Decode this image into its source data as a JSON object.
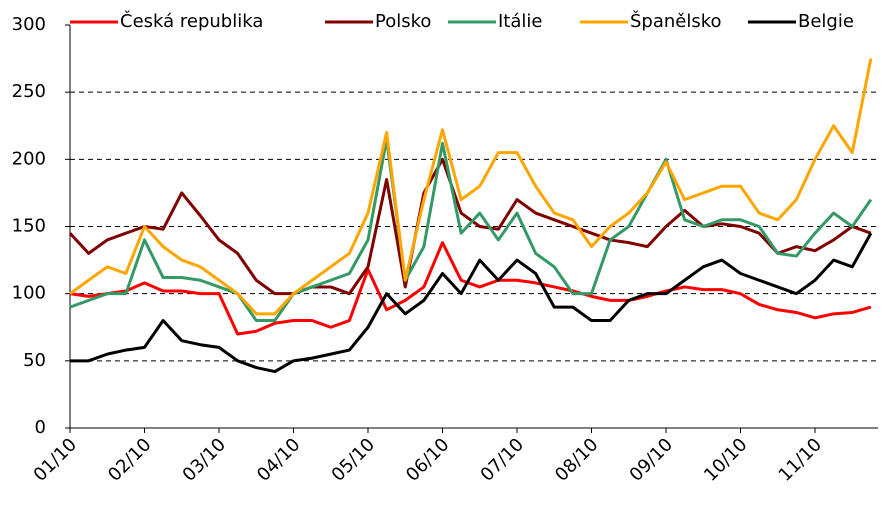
{
  "chart_data": {
    "type": "line",
    "categories": [
      "01/10",
      null,
      null,
      null,
      "02/10",
      null,
      null,
      null,
      "03/10",
      null,
      null,
      null,
      "04/10",
      null,
      null,
      null,
      "05/10",
      null,
      null,
      null,
      "06/10",
      null,
      null,
      null,
      "07/10",
      null,
      null,
      null,
      "08/10",
      null,
      null,
      null,
      "09/10",
      null,
      null,
      null,
      "10/10",
      null,
      null,
      null,
      "11/10",
      null,
      null,
      null
    ],
    "series": [
      {
        "name": "Česká republika",
        "color": "#ff0000",
        "values": [
          100,
          98,
          100,
          102,
          108,
          102,
          102,
          100,
          100,
          70,
          72,
          78,
          80,
          80,
          75,
          80,
          118,
          88,
          95,
          105,
          138,
          110,
          105,
          110,
          110,
          108,
          105,
          102,
          98,
          95,
          95,
          98,
          102,
          105,
          103,
          103,
          100,
          92,
          88,
          86,
          82,
          85,
          86,
          90
        ]
      },
      {
        "name": "Polsko",
        "color": "#800000",
        "values": [
          145,
          130,
          140,
          145,
          150,
          148,
          175,
          158,
          140,
          130,
          110,
          100,
          100,
          105,
          105,
          100,
          120,
          185,
          105,
          175,
          200,
          160,
          150,
          148,
          170,
          160,
          155,
          150,
          145,
          140,
          138,
          135,
          150,
          162,
          150,
          152,
          150,
          145,
          130,
          135,
          132,
          140,
          150,
          145
        ]
      },
      {
        "name": "Itálie",
        "color": "#339966",
        "values": [
          90,
          95,
          100,
          100,
          140,
          112,
          112,
          110,
          105,
          100,
          80,
          80,
          100,
          105,
          110,
          115,
          140,
          215,
          110,
          135,
          212,
          145,
          160,
          140,
          160,
          130,
          120,
          100,
          100,
          140,
          150,
          175,
          200,
          155,
          150,
          155,
          155,
          150,
          130,
          128,
          145,
          160,
          150,
          170
        ]
      },
      {
        "name": "Španělsko",
        "color": "#ffa500",
        "values": [
          100,
          110,
          120,
          115,
          150,
          135,
          125,
          120,
          110,
          100,
          85,
          85,
          100,
          110,
          120,
          130,
          160,
          220,
          110,
          170,
          222,
          170,
          180,
          205,
          205,
          180,
          160,
          155,
          135,
          150,
          160,
          175,
          198,
          170,
          175,
          180,
          180,
          160,
          155,
          170,
          200,
          225,
          205,
          275
        ]
      },
      {
        "name": "Belgie",
        "color": "#000000",
        "values": [
          50,
          50,
          55,
          58,
          60,
          80,
          65,
          62,
          60,
          50,
          45,
          42,
          50,
          52,
          55,
          58,
          75,
          100,
          85,
          95,
          115,
          100,
          125,
          110,
          125,
          115,
          90,
          90,
          80,
          80,
          95,
          100,
          100,
          110,
          120,
          125,
          115,
          110,
          105,
          100,
          110,
          125,
          120,
          145
        ]
      }
    ],
    "ylim": [
      0,
      300
    ],
    "yticks": [
      0,
      50,
      100,
      150,
      200,
      250,
      300
    ],
    "grid": true
  }
}
